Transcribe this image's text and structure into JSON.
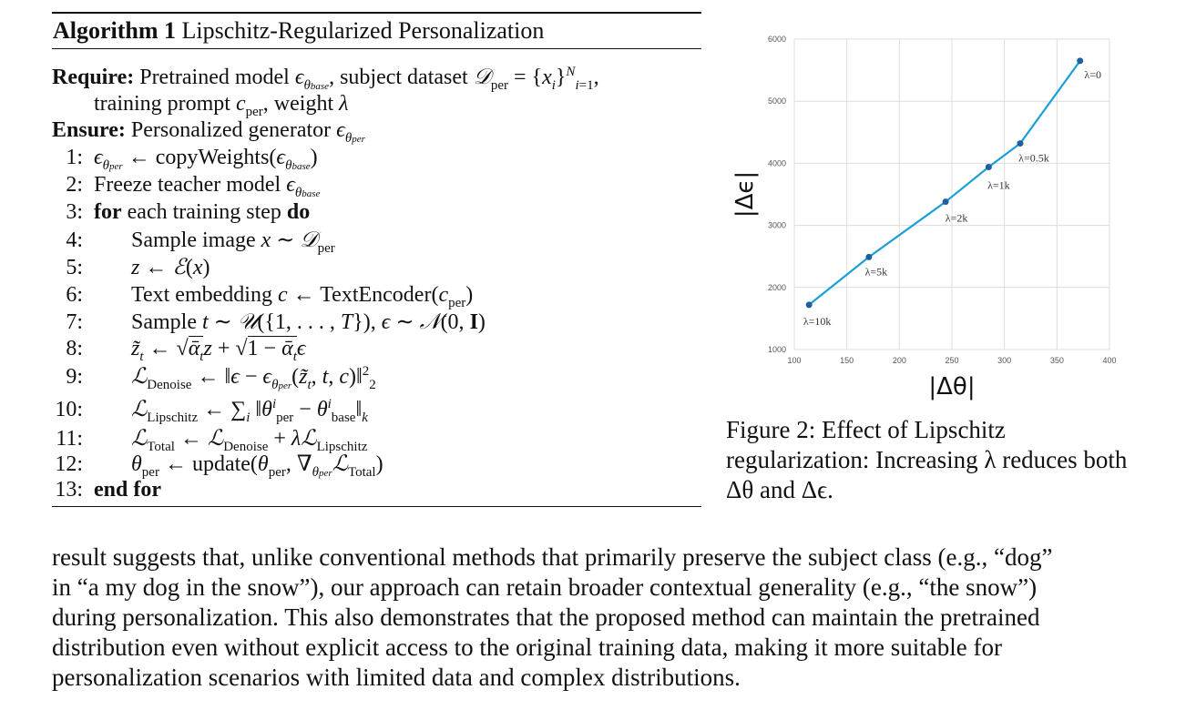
{
  "algorithm": {
    "label": "Algorithm 1",
    "title": "Lipschitz-Regularized Personalization",
    "require_kw": "Require:",
    "require_text_a": "Pretrained model",
    "require_text_b": ", subject dataset",
    "require_text_c": "training prompt",
    "require_text_d": ", weight",
    "ensure_kw": "Ensure:",
    "ensure_text": "Personalized generator",
    "steps": [
      {
        "n": "1:",
        "text": "copyWeights("
      },
      {
        "n": "2:",
        "text": "Freeze teacher model"
      },
      {
        "n": "3:",
        "kw1": "for",
        "text": " each training step ",
        "kw2": "do"
      },
      {
        "n": "4:",
        "text": "Sample image"
      },
      {
        "n": "5:",
        "text": ""
      },
      {
        "n": "6:",
        "text": "Text embedding",
        "text2": "TextEncoder("
      },
      {
        "n": "7:",
        "text": "Sample"
      },
      {
        "n": "8:",
        "text": ""
      },
      {
        "n": "9:",
        "text": ""
      },
      {
        "n": "10:",
        "text": ""
      },
      {
        "n": "11:",
        "text": ""
      },
      {
        "n": "12:",
        "text": "update("
      },
      {
        "n": "13:",
        "kw1": "end for"
      }
    ]
  },
  "figure": {
    "caption": "Figure 2:  Effect of Lipschitz regularization: Increasing λ reduces both Δθ and Δϵ."
  },
  "chart_data": {
    "type": "line",
    "xlabel": "|Δθ|",
    "ylabel": "|Δϵ|",
    "xlim": [
      100,
      400
    ],
    "ylim": [
      1000,
      6000
    ],
    "xticks": [
      100,
      150,
      200,
      250,
      300,
      350,
      400
    ],
    "yticks": [
      1000,
      2000,
      3000,
      4000,
      5000,
      6000
    ],
    "grid": true,
    "color": "#1a9fd8",
    "points": [
      {
        "x": 114,
        "y": 1720,
        "label": "λ=10k"
      },
      {
        "x": 171,
        "y": 2490,
        "label": "λ=5k"
      },
      {
        "x": 244,
        "y": 3380,
        "label": "λ=2k"
      },
      {
        "x": 285,
        "y": 3940,
        "label": "λ=1k"
      },
      {
        "x": 315,
        "y": 4320,
        "label": "λ=0.5k"
      },
      {
        "x": 372,
        "y": 5650,
        "label": "λ=0"
      }
    ]
  },
  "paragraph": [
    "result suggests that, unlike conventional methods that primarily preserve the subject class (e.g., “dog”",
    "in “a my dog in the snow”), our approach can retain broader contextual generality (e.g., “the snow”)",
    "during personalization. This also demonstrates that the proposed method can maintain the pretrained",
    "distribution even without explicit access to the original training data, making it more suitable for",
    "personalization scenarios with limited data and complex distributions."
  ]
}
